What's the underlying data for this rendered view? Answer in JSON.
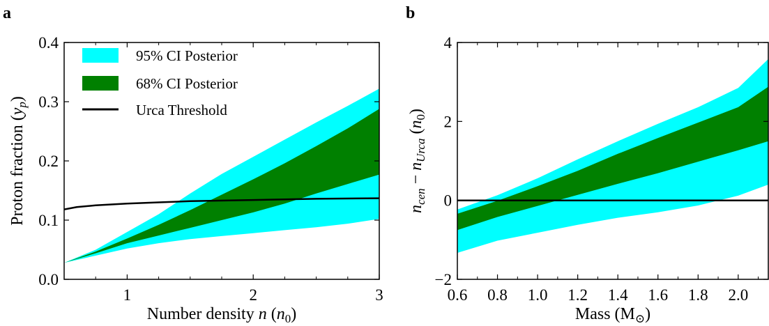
{
  "chart_data": [
    {
      "type": "area",
      "panel_label": "a",
      "xlabel": "Number density n (n0)",
      "xlabel_parts": [
        "Number density ",
        "n",
        " (",
        "n",
        "0",
        ")"
      ],
      "ylabel": "Proton fraction (yp)",
      "ylabel_parts": [
        "Proton fraction (",
        "y",
        "p",
        ")"
      ],
      "xlim": [
        0.5,
        3.0
      ],
      "ylim": [
        0.0,
        0.4
      ],
      "xticks": [
        1,
        2,
        3
      ],
      "xtick_labels": [
        "1",
        "2",
        "3"
      ],
      "yticks": [
        0.0,
        0.1,
        0.2,
        0.3,
        0.4
      ],
      "ytick_labels": [
        "0.0",
        "0.1",
        "0.2",
        "0.3",
        "0.4"
      ],
      "legend_position": "top-left",
      "colors": {
        "ci95": "#00ffff",
        "ci68": "#008000",
        "threshold": "#000000"
      },
      "series": [
        {
          "name": "95% CI Posterior",
          "kind": "band",
          "x": [
            0.5,
            0.75,
            1.0,
            1.25,
            1.5,
            1.75,
            2.0,
            2.25,
            2.5,
            2.75,
            3.0
          ],
          "lower": [
            0.028,
            0.04,
            0.052,
            0.061,
            0.068,
            0.073,
            0.078,
            0.083,
            0.088,
            0.094,
            0.102
          ],
          "upper": [
            0.028,
            0.05,
            0.08,
            0.11,
            0.145,
            0.178,
            0.207,
            0.236,
            0.265,
            0.293,
            0.322
          ]
        },
        {
          "name": "68% CI Posterior",
          "kind": "band",
          "x": [
            0.5,
            0.75,
            1.0,
            1.25,
            1.5,
            1.75,
            2.0,
            2.25,
            2.5,
            2.75,
            3.0
          ],
          "lower": [
            0.028,
            0.044,
            0.061,
            0.074,
            0.087,
            0.1,
            0.113,
            0.128,
            0.145,
            0.161,
            0.177
          ],
          "upper": [
            0.028,
            0.047,
            0.069,
            0.092,
            0.117,
            0.143,
            0.169,
            0.196,
            0.225,
            0.255,
            0.288
          ]
        },
        {
          "name": "Urca Threshold",
          "kind": "line",
          "x": [
            0.5,
            0.6,
            0.75,
            1.0,
            1.25,
            1.5,
            2.0,
            2.5,
            3.0
          ],
          "y": [
            0.118,
            0.122,
            0.125,
            0.128,
            0.13,
            0.132,
            0.134,
            0.136,
            0.137
          ]
        }
      ]
    },
    {
      "type": "area",
      "panel_label": "b",
      "xlabel": "Mass (M⊙)",
      "xlabel_parts": [
        "Mass (M",
        "⊙",
        ")"
      ],
      "ylabel": "ncen − nUrca (n0)",
      "ylabel_parts": [
        "n",
        "cen",
        " − ",
        "n",
        "Urca",
        " (",
        "n",
        "0",
        ")"
      ],
      "xlim": [
        0.6,
        2.15
      ],
      "ylim": [
        -2,
        4
      ],
      "xticks": [
        0.6,
        0.8,
        1.0,
        1.2,
        1.4,
        1.6,
        1.8,
        2.0
      ],
      "xtick_labels": [
        "0.6",
        "0.8",
        "1.0",
        "1.2",
        "1.4",
        "1.6",
        "1.8",
        "2.0"
      ],
      "yticks": [
        -2,
        0,
        2,
        4
      ],
      "ytick_labels": [
        "−2",
        "0",
        "2",
        "4"
      ],
      "colors": {
        "ci95": "#00ffff",
        "ci68": "#008000",
        "threshold": "#000000"
      },
      "series": [
        {
          "name": "95% CI Posterior",
          "kind": "band",
          "x": [
            0.6,
            0.8,
            1.0,
            1.2,
            1.4,
            1.6,
            1.8,
            2.0,
            2.15
          ],
          "lower": [
            -1.33,
            -1.02,
            -0.82,
            -0.62,
            -0.44,
            -0.3,
            -0.13,
            0.12,
            0.4
          ],
          "upper": [
            -0.23,
            0.13,
            0.56,
            1.04,
            1.5,
            1.94,
            2.36,
            2.85,
            3.58
          ]
        },
        {
          "name": "68% CI Posterior",
          "kind": "band",
          "x": [
            0.6,
            0.8,
            1.0,
            1.2,
            1.4,
            1.6,
            1.8,
            2.0,
            2.15
          ],
          "lower": [
            -0.75,
            -0.42,
            -0.14,
            0.14,
            0.42,
            0.69,
            0.98,
            1.27,
            1.5
          ],
          "upper": [
            -0.34,
            -0.01,
            0.36,
            0.75,
            1.18,
            1.58,
            1.97,
            2.36,
            2.88
          ]
        },
        {
          "name": "Urca Threshold",
          "kind": "line",
          "x": [
            0.6,
            2.15
          ],
          "y": [
            0,
            0
          ]
        }
      ]
    }
  ]
}
